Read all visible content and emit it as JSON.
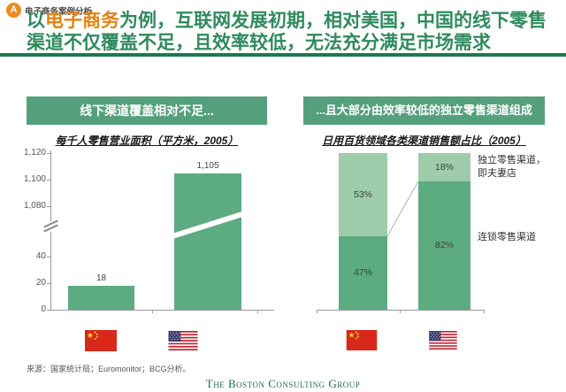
{
  "badge": {
    "letter": "A",
    "label": "电子商务案例分析"
  },
  "title": {
    "prefix": "以",
    "highlight": "电子商务",
    "rest": "为例，互联网发展初期，相对美国，中国的线下零售渠道不仅覆盖不足，且效率较低，无法充分满足市场需求"
  },
  "colors": {
    "title_green": "#2f8a5e",
    "highlight_orange": "#e2830f",
    "rule_green": "#1c7a4e",
    "header_box_green": "#55a07c",
    "bar_dark_green": "#5dab80",
    "bar_light_green": "#9ecbaa",
    "badge_orange": "#ee8b1e",
    "logo_green": "#1e6b52"
  },
  "left_panel": {
    "header": "线下渠道覆盖相对不足...",
    "subtitle": "每千人零售营业面积（平方米，2005）"
  },
  "right_panel": {
    "header": "...且大部分由效率较低的独立零售渠道组成",
    "subtitle": "日用百货领域各类渠道销售额占比（2005）"
  },
  "chart_data": [
    {
      "type": "bar",
      "title": "每千人零售营业面积（平方米，2005）",
      "categories": [
        "中国",
        "美国"
      ],
      "values": [
        18,
        1105
      ],
      "value_labels": [
        "18",
        "1,105"
      ],
      "axis": {
        "broken": true,
        "lower_ticks": [
          {
            "value": 0,
            "label": "0"
          },
          {
            "value": 20,
            "label": "20"
          },
          {
            "value": 40,
            "label": "40"
          }
        ],
        "upper_ticks": [
          {
            "value": 1080,
            "label": "1,080"
          },
          {
            "value": 1100,
            "label": "1,100"
          },
          {
            "value": 1120,
            "label": "1,120"
          }
        ]
      }
    },
    {
      "type": "stacked-bar",
      "title": "日用百货领域各类渠道销售额占比（2005）",
      "categories": [
        "中国",
        "美国"
      ],
      "ylim": [
        0,
        100
      ],
      "series": [
        {
          "name": "连锁零售渠道",
          "values": [
            47,
            82
          ],
          "labels": [
            "47%",
            "82%"
          ]
        },
        {
          "name": "独立零售渠道，即夫妻店",
          "values": [
            53,
            18
          ],
          "labels": [
            "53%",
            "18%"
          ]
        }
      ],
      "annotations": [
        {
          "lines": [
            "独立零售渠道，",
            "即夫妻店"
          ]
        },
        {
          "lines": [
            "连锁零售渠道"
          ]
        }
      ]
    }
  ],
  "footer": {
    "source": "来源：国家统计局；Euromonitor；BCG分析。",
    "logo": "The Boston Consulting Group"
  }
}
